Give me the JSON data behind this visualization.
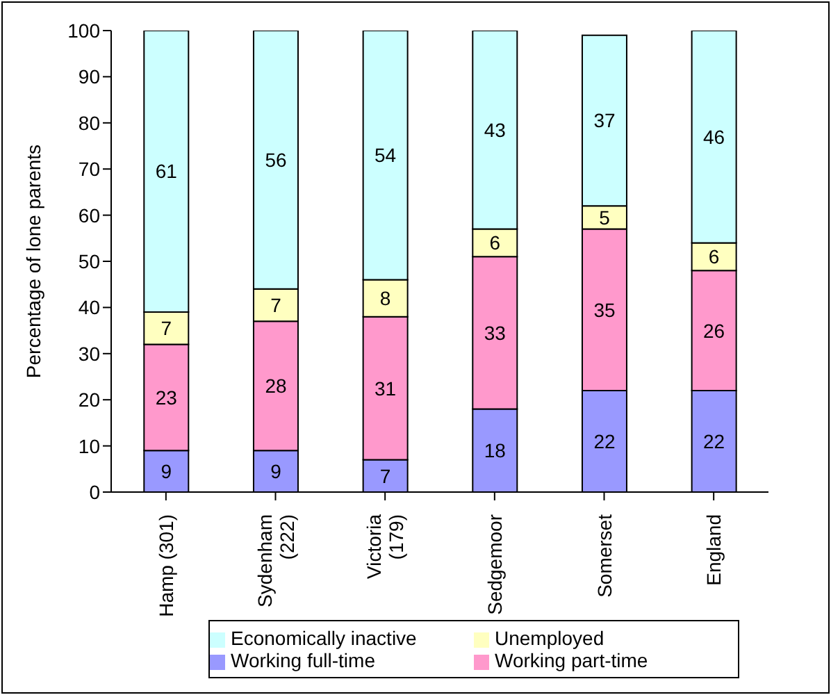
{
  "chart_data": {
    "type": "bar",
    "stacked": true,
    "ylabel": "Percentage of lone parents",
    "categories": [
      "Hamp (301)",
      "Sydenham\n(222)",
      "Victoria\n(179)",
      "Sedgemoor",
      "Somerset",
      "England"
    ],
    "series": [
      {
        "name": "Working full-time",
        "color": "#9999ff",
        "values": [
          9,
          9,
          7,
          18,
          22,
          22
        ]
      },
      {
        "name": "Working part-time",
        "color": "#ff99cc",
        "values": [
          23,
          28,
          31,
          33,
          35,
          26
        ]
      },
      {
        "name": "Unemployed",
        "color": "#ffffc0",
        "values": [
          7,
          7,
          8,
          6,
          5,
          6
        ]
      },
      {
        "name": "Economically inactive",
        "color": "#ccffff",
        "values": [
          61,
          56,
          54,
          43,
          37,
          46
        ]
      }
    ],
    "ylim": [
      0,
      100
    ],
    "yticks": [
      0,
      10,
      20,
      30,
      40,
      50,
      60,
      70,
      80,
      90,
      100
    ],
    "data_labels": true,
    "legend": "bottom",
    "grid": false
  }
}
